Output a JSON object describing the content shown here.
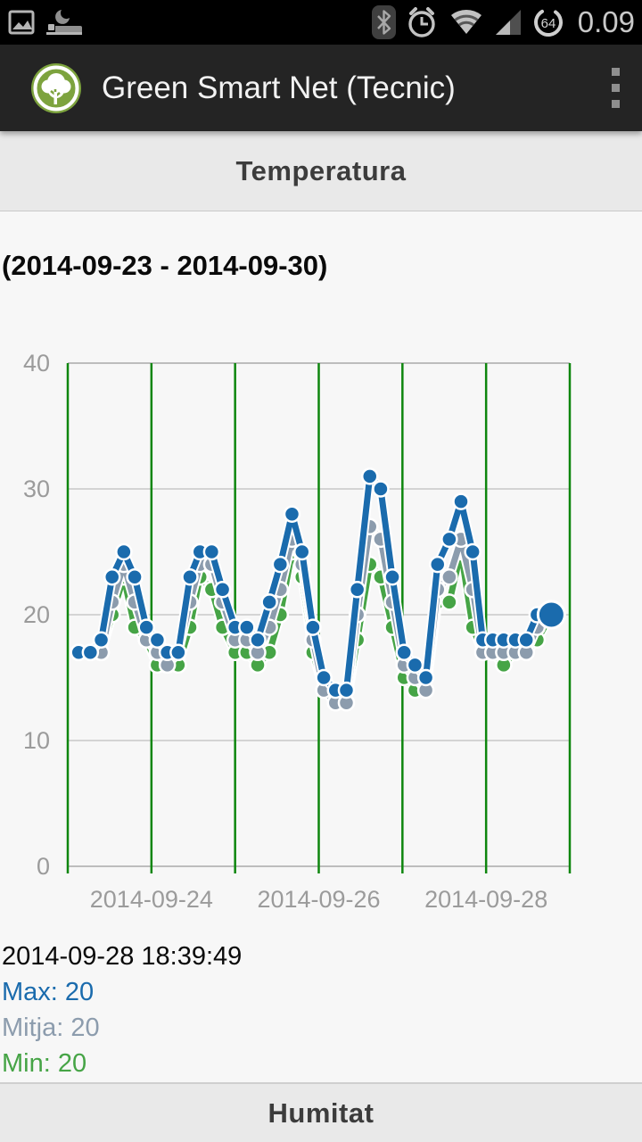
{
  "status_bar": {
    "time": "0.09",
    "battery_level": "64",
    "icons_left": [
      "gallery-icon",
      "sleep-mode-icon"
    ],
    "icons_right": [
      "bluetooth-icon",
      "alarm-icon",
      "wifi-icon",
      "signal-icon",
      "battery-circle-icon"
    ]
  },
  "app_bar": {
    "title": "Green Smart Net (Tecnic)",
    "logo": "tree-logo",
    "overflow_menu": "overflow-menu"
  },
  "section_header": {
    "title": "Temperatura"
  },
  "date_range": "(2014-09-23 - 2014-09-30)",
  "readout": {
    "timestamp": "2014-09-28 18:39:49",
    "max_label": "Max:",
    "max_value": "20",
    "mitja_label": "Mitja:",
    "mitja_value": "20",
    "min_label": "Min:",
    "min_value": "20"
  },
  "bottom_header": {
    "title": "Humitat"
  },
  "colors": {
    "series_max": "#1a6bad",
    "series_mitja": "#8c9cad",
    "series_min": "#46a446",
    "grid_vertical": "#0e860e",
    "grid_horizontal": "#c9c9c9",
    "grid_border": "#bdbdbd",
    "axis_text": "#9b9b9b",
    "header_bg": "#e9e9e9",
    "app_bar_bg": "#242424",
    "status_bar_bg": "#000000",
    "content_bg": "#f7f7f7",
    "logo_green": "#7da33e"
  },
  "chart_data": {
    "type": "line",
    "title": "Temperatura (2014-09-23 - 2014-09-30)",
    "xlabel": "",
    "ylabel": "",
    "ylim": [
      0,
      40
    ],
    "yticks": [
      0,
      10,
      20,
      30,
      40
    ],
    "x_unit": "days since 2014-09-23 00:00",
    "x_domain_days": [
      0,
      6
    ],
    "x_gridlines_days": [
      0,
      1,
      2,
      3,
      4,
      5,
      6
    ],
    "xticks": [
      {
        "pos": 1,
        "label": "2014-09-24"
      },
      {
        "pos": 3,
        "label": "2014-09-26"
      },
      {
        "pos": 5,
        "label": "2014-09-28"
      }
    ],
    "grid": true,
    "legend_position": "none",
    "x": [
      0.13,
      0.27,
      0.4,
      0.53,
      0.67,
      0.8,
      0.94,
      1.07,
      1.19,
      1.32,
      1.46,
      1.58,
      1.72,
      1.85,
      2.0,
      2.14,
      2.27,
      2.41,
      2.54,
      2.68,
      2.8,
      2.93,
      3.06,
      3.2,
      3.33,
      3.46,
      3.61,
      3.74,
      3.88,
      4.02,
      4.15,
      4.28,
      4.42,
      4.56,
      4.7,
      4.84,
      4.96,
      5.08,
      5.21,
      5.35,
      5.48,
      5.61,
      5.78
    ],
    "series": [
      {
        "name": "Max",
        "color": "#1a6bad",
        "values": [
          17,
          17,
          18,
          23,
          25,
          23,
          19,
          18,
          17,
          17,
          23,
          25,
          25,
          22,
          19,
          19,
          18,
          21,
          24,
          28,
          25,
          19,
          15,
          14,
          14,
          22,
          31,
          30,
          23,
          17,
          16,
          15,
          24,
          26,
          29,
          25,
          18,
          18,
          18,
          18,
          18,
          20,
          20
        ]
      },
      {
        "name": "Mitja",
        "color": "#8c9cad",
        "values": [
          17,
          17,
          17,
          21,
          24,
          21,
          18,
          17,
          16,
          17,
          21,
          24,
          24,
          21,
          18,
          18,
          17,
          19,
          22,
          26,
          24,
          18,
          14,
          13,
          13,
          20,
          27,
          26,
          21,
          16,
          15,
          14,
          22,
          23,
          26,
          22,
          17,
          17,
          17,
          17,
          17,
          19,
          20
        ]
      },
      {
        "name": "Min",
        "color": "#46a446",
        "values": [
          17,
          17,
          17,
          20,
          23,
          19,
          18,
          16,
          16,
          16,
          19,
          23,
          22,
          19,
          17,
          17,
          16,
          17,
          20,
          25,
          23,
          17,
          14,
          13,
          13,
          18,
          24,
          23,
          19,
          15,
          14,
          14,
          21,
          21,
          25,
          19,
          17,
          17,
          16,
          17,
          17,
          18,
          20
        ]
      }
    ],
    "selected_point": {
      "index": 42,
      "timestamp": "2014-09-28 18:39:49",
      "max": 20,
      "mitja": 20,
      "min": 20
    }
  }
}
